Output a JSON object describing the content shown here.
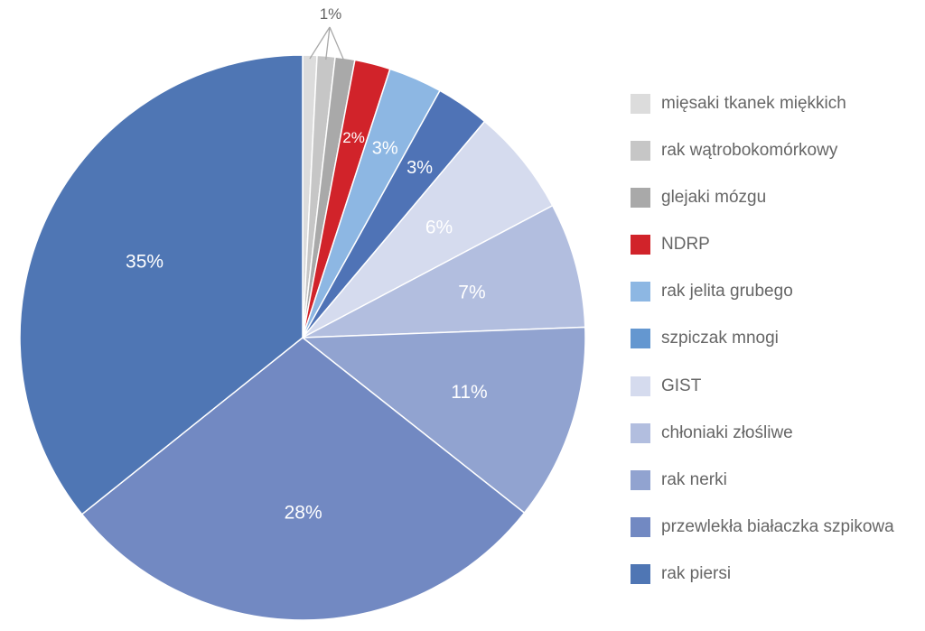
{
  "chart_data": {
    "type": "pie",
    "title": "",
    "categories": [
      "mięsaki tkanek miękkich",
      "rak wątrobokomórkowy",
      "glejaki mózgu",
      "NDRP",
      "rak jelita grubego",
      "szpiczak mnogi",
      "GIST",
      "chłoniaki złośliwe",
      "rak nerki",
      "przewlekła białaczka szpikowa",
      "rak piersi"
    ],
    "values": [
      0.8,
      1.0,
      1.1,
      2,
      3,
      3,
      6,
      7,
      11,
      28,
      35
    ],
    "data_labels": [
      "",
      "",
      "",
      "2%",
      "3%",
      "3%",
      "6%",
      "7%",
      "11%",
      "28%",
      "35%"
    ],
    "shared_label": "1%",
    "colors": [
      "#dcdcdc",
      "#c6c6c6",
      "#a9a9a9",
      "#d1232a",
      "#8db7e3",
      "#4f73b6",
      "#d5dbee",
      "#b2bedf",
      "#91a3d0",
      "#7289c2",
      "#4f76b4"
    ],
    "legend_colors": [
      "#dcdcdc",
      "#c6c6c6",
      "#a9a9a9",
      "#d1232a",
      "#8db7e3",
      "#6497d0",
      "#d5dbee",
      "#b2bedf",
      "#91a3d0",
      "#7289c2",
      "#4f76b4"
    ],
    "start_angle_deg": 0,
    "direction": "clockwise",
    "legend_position": "right"
  }
}
